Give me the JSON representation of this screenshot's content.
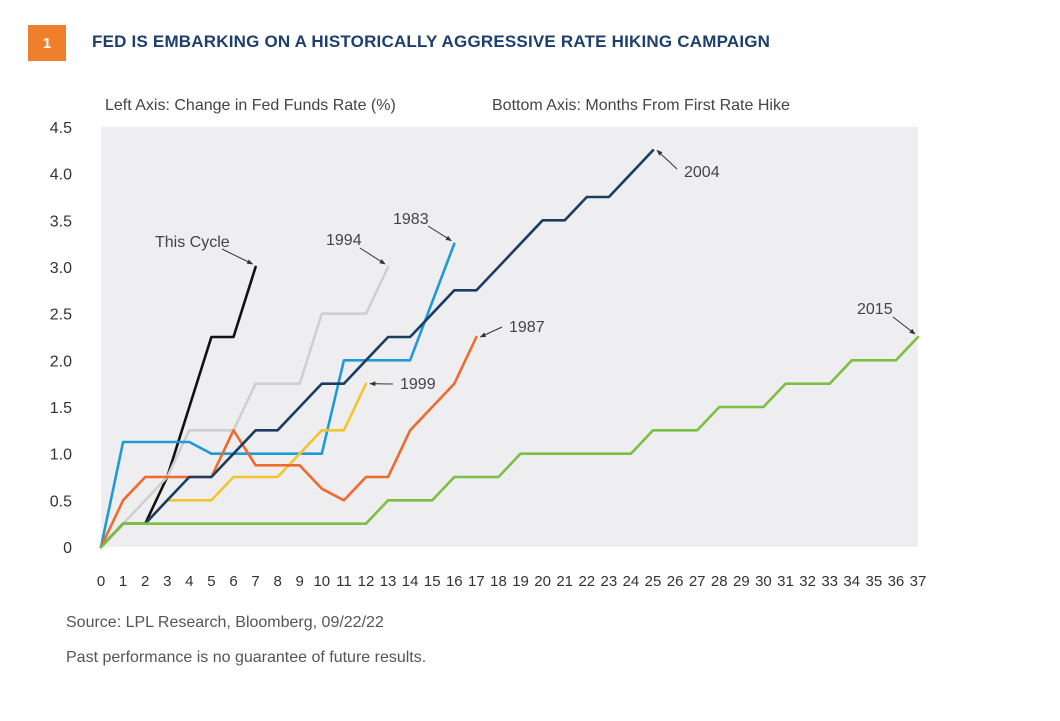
{
  "header": {
    "figure_number": "1",
    "title": "FED IS EMBARKING ON A HISTORICALLY AGGRESSIVE RATE HIKING CAMPAIGN"
  },
  "footer": {
    "source": "Source: LPL Research, Bloomberg,  09/22/22",
    "disclaimer": "Past performance is no guarantee of future results."
  },
  "chart_data": {
    "type": "line",
    "ylabel": "Left Axis: Change in Fed Funds Rate (%)",
    "xlabel": "Bottom Axis: Months From First Rate Hike",
    "ylim": [
      0,
      4.5
    ],
    "xlim": [
      0,
      37
    ],
    "yticks": [
      "0",
      "0.5",
      "1.0",
      "1.5",
      "2.0",
      "2.5",
      "3.0",
      "3.5",
      "4.0",
      "4.5"
    ],
    "xticks": [
      "0",
      "1",
      "2",
      "3",
      "4",
      "5",
      "6",
      "7",
      "8",
      "9",
      "10",
      "11",
      "12",
      "13",
      "14",
      "15",
      "16",
      "17",
      "18",
      "19",
      "20",
      "21",
      "22",
      "23",
      "24",
      "25",
      "26",
      "27",
      "28",
      "29",
      "30",
      "31",
      "32",
      "33",
      "34",
      "35",
      "36",
      "37"
    ],
    "grid": false,
    "plot_background": "#eeeef0",
    "series": [
      {
        "name": "This Cycle",
        "color": "#111111",
        "x": [
          0,
          1,
          2,
          3,
          4,
          5,
          6,
          7
        ],
        "y": [
          0,
          0.25,
          0.25,
          0.75,
          1.5,
          2.25,
          2.25,
          3.0
        ]
      },
      {
        "name": "1994",
        "color": "#cfcfcf",
        "x": [
          0,
          1,
          2,
          3,
          4,
          5,
          6,
          7,
          8,
          9,
          10,
          11,
          12,
          13
        ],
        "y": [
          0,
          0.25,
          0.5,
          0.75,
          1.25,
          1.25,
          1.25,
          1.75,
          1.75,
          1.75,
          2.5,
          2.5,
          2.5,
          3.0
        ]
      },
      {
        "name": "1983",
        "color": "#1f9ad4",
        "x": [
          0,
          1,
          2,
          3,
          4,
          5,
          6,
          7,
          8,
          9,
          10,
          11,
          12,
          13,
          14,
          15,
          16
        ],
        "y": [
          0,
          1.125,
          1.125,
          1.125,
          1.125,
          1.0,
          1.0,
          1.0,
          1.0,
          1.0,
          1.0,
          2.0,
          2.0,
          2.0,
          2.0,
          2.625,
          3.25
        ]
      },
      {
        "name": "1999",
        "color": "#f2c530",
        "x": [
          0,
          1,
          2,
          3,
          4,
          5,
          6,
          7,
          8,
          9,
          10,
          11,
          12
        ],
        "y": [
          0,
          0.25,
          0.25,
          0.5,
          0.5,
          0.5,
          0.75,
          0.75,
          0.75,
          1.0,
          1.25,
          1.25,
          1.75
        ]
      },
      {
        "name": "1987",
        "color": "#ef6a2e",
        "x": [
          0,
          1,
          2,
          3,
          4,
          5,
          6,
          7,
          8,
          9,
          10,
          11,
          12,
          13,
          14,
          15,
          16,
          17
        ],
        "y": [
          0,
          0.5,
          0.75,
          0.75,
          0.75,
          0.75,
          1.25,
          0.875,
          0.875,
          0.875,
          0.625,
          0.5,
          0.75,
          0.75,
          1.25,
          1.5,
          1.75,
          2.25
        ]
      },
      {
        "name": "2004",
        "color": "#1c3d63",
        "x": [
          0,
          1,
          2,
          3,
          4,
          5,
          6,
          7,
          8,
          9,
          10,
          11,
          12,
          13,
          14,
          15,
          16,
          17,
          18,
          19,
          20,
          21,
          22,
          23,
          24,
          25
        ],
        "y": [
          0,
          0.25,
          0.25,
          0.5,
          0.75,
          0.75,
          1.0,
          1.25,
          1.25,
          1.5,
          1.75,
          1.75,
          2.0,
          2.25,
          2.25,
          2.5,
          2.75,
          2.75,
          3.0,
          3.25,
          3.5,
          3.5,
          3.75,
          3.75,
          4.0,
          4.25
        ]
      },
      {
        "name": "2015",
        "color": "#7bc043",
        "x": [
          0,
          1,
          2,
          3,
          4,
          5,
          6,
          7,
          8,
          9,
          10,
          11,
          12,
          13,
          14,
          15,
          16,
          17,
          18,
          19,
          20,
          21,
          22,
          23,
          24,
          25,
          26,
          27,
          28,
          29,
          30,
          31,
          32,
          33,
          34,
          35,
          36,
          37
        ],
        "y": [
          0,
          0.25,
          0.25,
          0.25,
          0.25,
          0.25,
          0.25,
          0.25,
          0.25,
          0.25,
          0.25,
          0.25,
          0.25,
          0.5,
          0.5,
          0.5,
          0.75,
          0.75,
          0.75,
          1.0,
          1.0,
          1.0,
          1.0,
          1.0,
          1.0,
          1.25,
          1.25,
          1.25,
          1.5,
          1.5,
          1.5,
          1.75,
          1.75,
          1.75,
          2.0,
          2.0,
          2.0,
          2.25
        ]
      }
    ],
    "annotations": [
      {
        "text": "This Cycle",
        "series": "This Cycle"
      },
      {
        "text": "1994",
        "series": "1994"
      },
      {
        "text": "1983",
        "series": "1983"
      },
      {
        "text": "1999",
        "series": "1999"
      },
      {
        "text": "1987",
        "series": "1987"
      },
      {
        "text": "2004",
        "series": "2004"
      },
      {
        "text": "2015",
        "series": "2015"
      }
    ]
  }
}
